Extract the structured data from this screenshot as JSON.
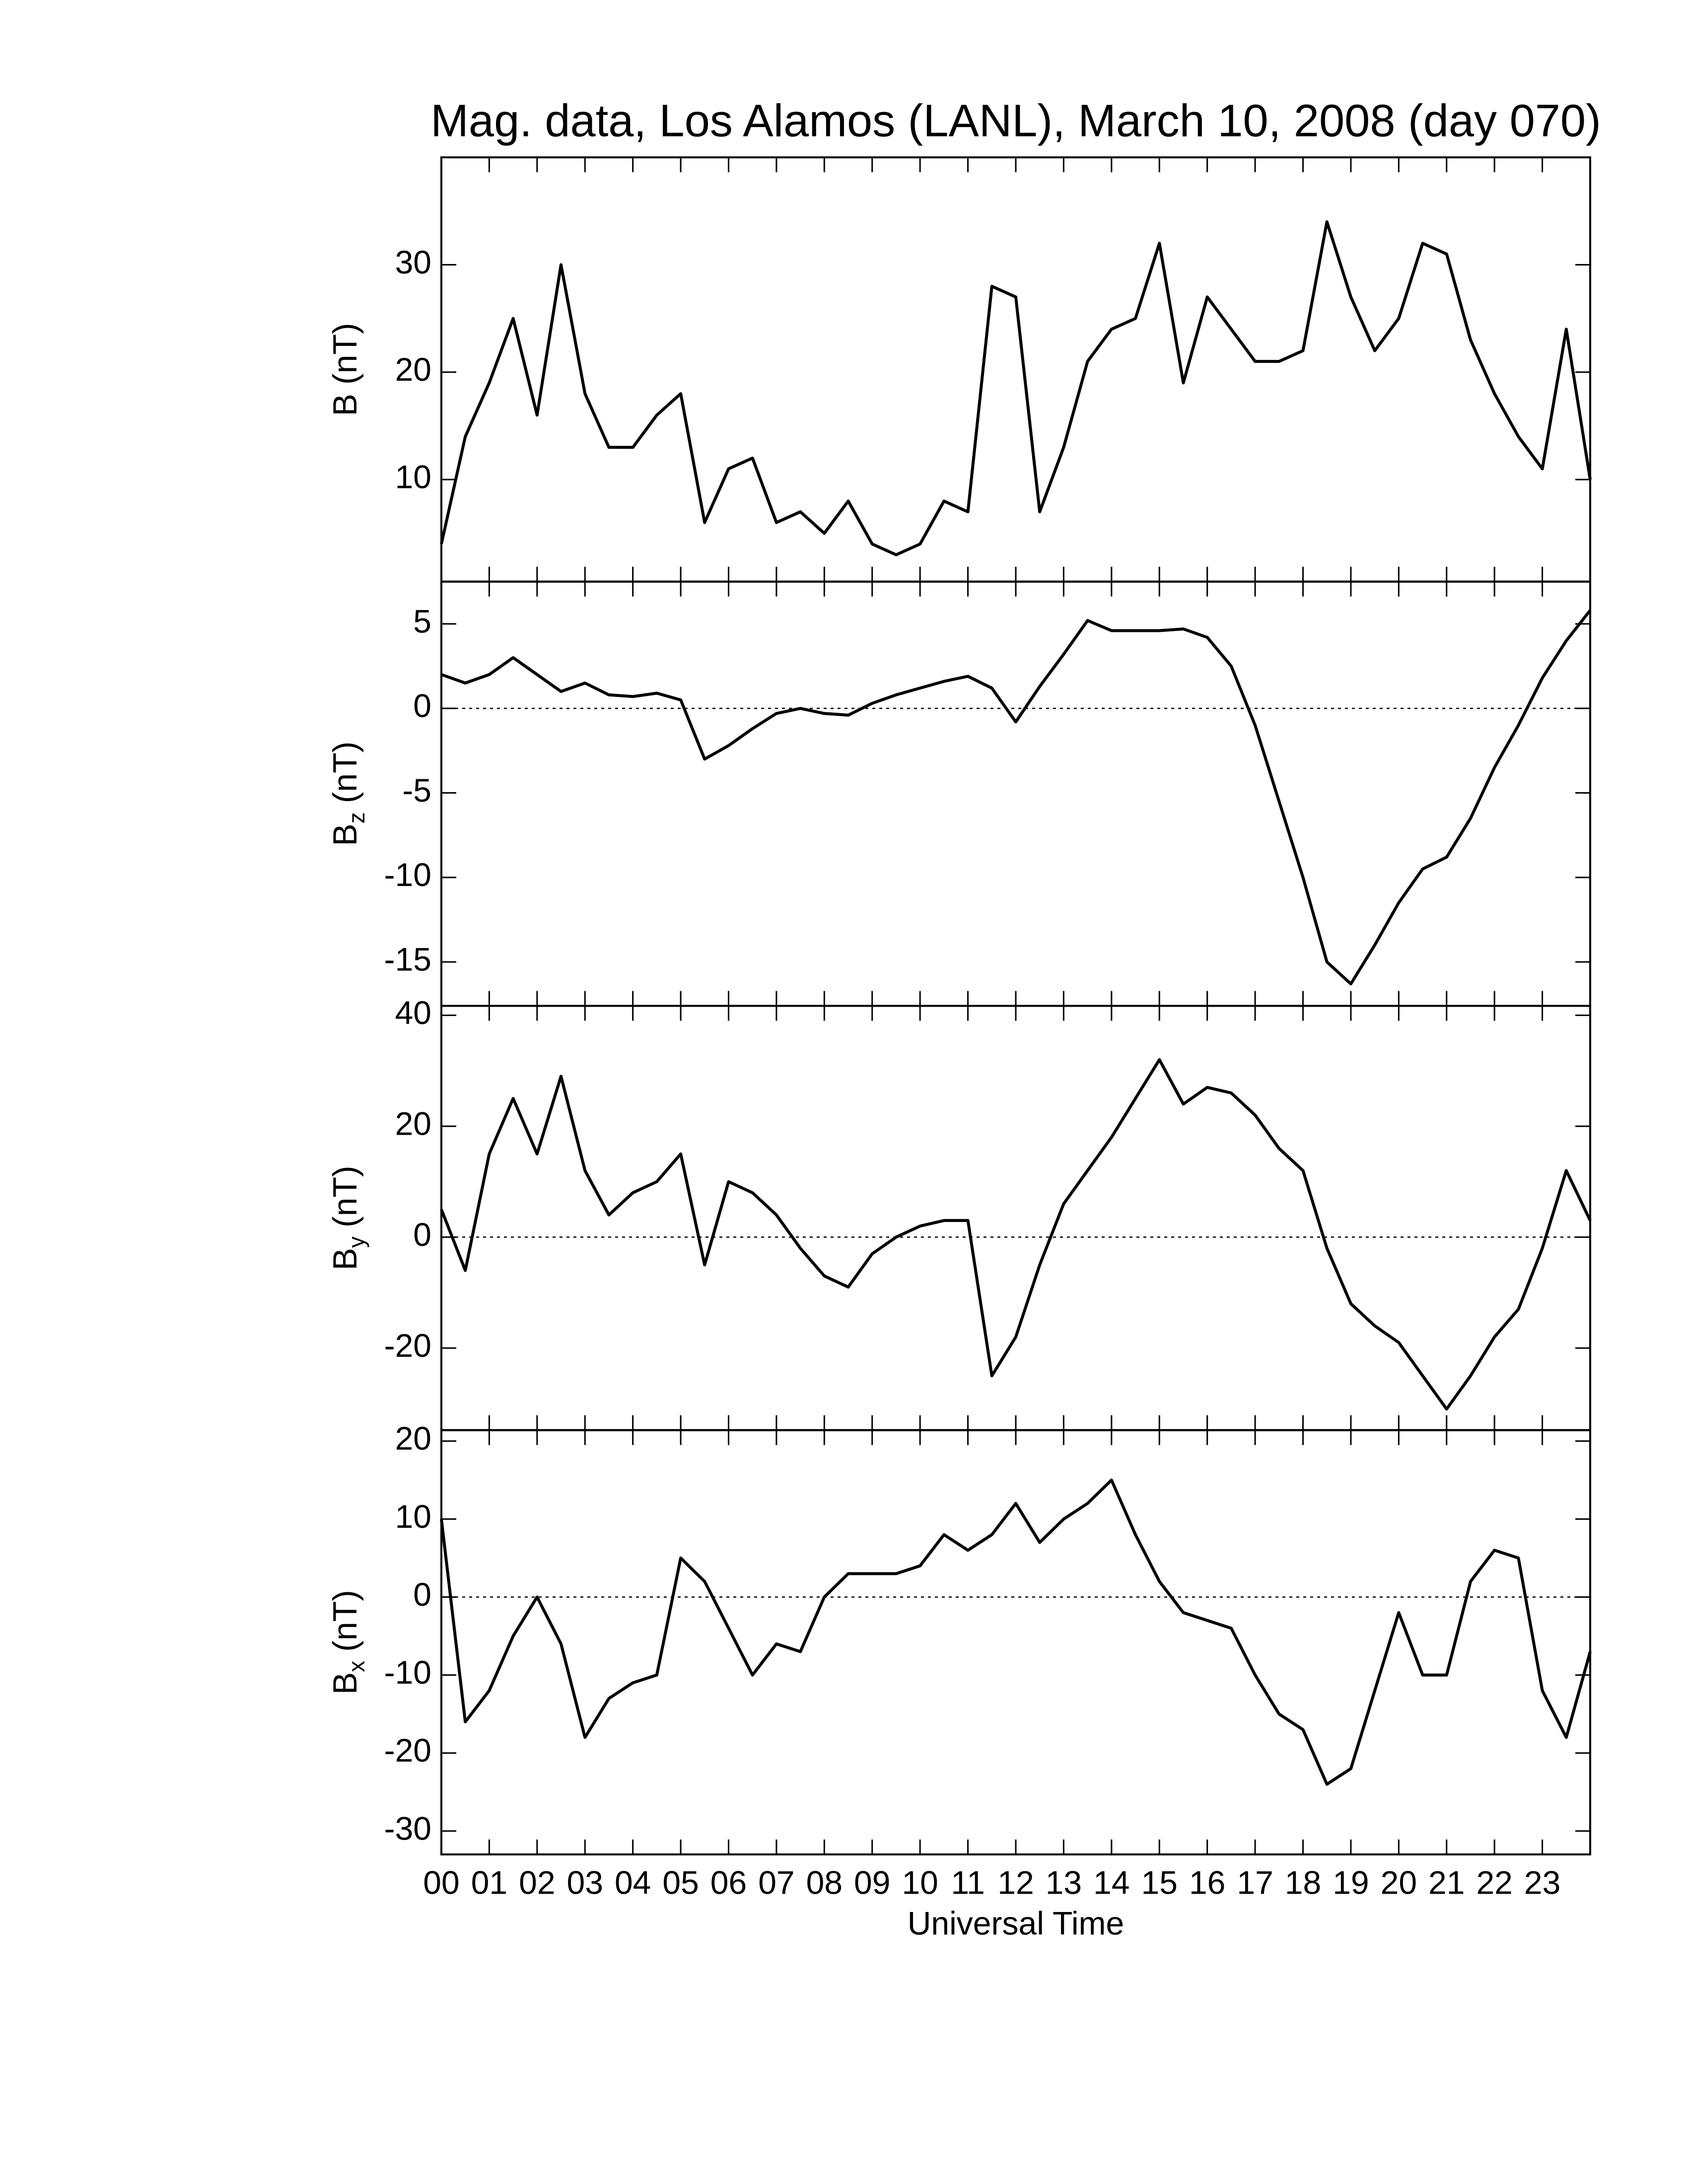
{
  "chart_data": {
    "type": "line",
    "title": "Mag. data, Los Alamos (LANL), March 10, 2008 (day 070)",
    "xlabel": "Universal Time",
    "xlim": [
      0,
      24
    ],
    "xticks": [
      {
        "value": 0,
        "label": "00"
      },
      {
        "value": 1,
        "label": "01"
      },
      {
        "value": 2,
        "label": "02"
      },
      {
        "value": 3,
        "label": "03"
      },
      {
        "value": 4,
        "label": "04"
      },
      {
        "value": 5,
        "label": "05"
      },
      {
        "value": 6,
        "label": "06"
      },
      {
        "value": 7,
        "label": "07"
      },
      {
        "value": 8,
        "label": "08"
      },
      {
        "value": 9,
        "label": "09"
      },
      {
        "value": 10,
        "label": "10"
      },
      {
        "value": 11,
        "label": "11"
      },
      {
        "value": 12,
        "label": "12"
      },
      {
        "value": 13,
        "label": "13"
      },
      {
        "value": 14,
        "label": "14"
      },
      {
        "value": 15,
        "label": "15"
      },
      {
        "value": 16,
        "label": "16"
      },
      {
        "value": 17,
        "label": "17"
      },
      {
        "value": 18,
        "label": "18"
      },
      {
        "value": 19,
        "label": "19"
      },
      {
        "value": 20,
        "label": "20"
      },
      {
        "value": 21,
        "label": "21"
      },
      {
        "value": 22,
        "label": "22"
      },
      {
        "value": 23,
        "label": "23"
      }
    ],
    "x": [
      0,
      0.5,
      1,
      1.5,
      2,
      2.5,
      3,
      3.5,
      4,
      4.5,
      5,
      5.5,
      6,
      6.5,
      7,
      7.5,
      8,
      8.5,
      9,
      9.5,
      10,
      10.5,
      11,
      11.5,
      12,
      12.5,
      13,
      13.5,
      14,
      14.5,
      15,
      15.5,
      16,
      16.5,
      17,
      17.5,
      18,
      18.5,
      19,
      19.5,
      20,
      20.5,
      21,
      21.5,
      22,
      22.5,
      23,
      23.5,
      24
    ],
    "panels": [
      {
        "ylabel": "B",
        "ylabel_unit": "(nT)",
        "ylim": [
          0.5,
          40
        ],
        "yticks": [
          10,
          20,
          30
        ],
        "zero_line": false,
        "series": [
          {
            "color": "#000000",
            "values": [
              4,
              14,
              19,
              25,
              16,
              30,
              18,
              13,
              13,
              16,
              18,
              6,
              11,
              12,
              6,
              7,
              5,
              8,
              4,
              3,
              4,
              8,
              7,
              28,
              27,
              7,
              13,
              21,
              24,
              25,
              32,
              19,
              27,
              24,
              21,
              21,
              22,
              34,
              27,
              22,
              25,
              32,
              31,
              23,
              18,
              14,
              11,
              24,
              10
            ]
          }
        ]
      },
      {
        "ylabel": "B",
        "ylabel_sub": "z",
        "ylabel_unit": "(nT)",
        "ylim": [
          -17.6,
          7.5
        ],
        "yticks": [
          -15,
          -10,
          -5,
          0,
          5
        ],
        "zero_line": true,
        "series": [
          {
            "color": "#000000",
            "values": [
              2,
              1.5,
              2,
              3,
              2,
              1,
              1.5,
              0.8,
              0.7,
              0.9,
              0.5,
              -3,
              -2.2,
              -1.2,
              -0.3,
              0,
              -0.3,
              -0.4,
              0.3,
              0.8,
              1.2,
              1.6,
              1.9,
              1.2,
              -0.8,
              1.3,
              3.2,
              5.2,
              4.6,
              4.6,
              4.6,
              4.7,
              4.2,
              2.5,
              -1,
              -5.5,
              -10,
              -15,
              -16.3,
              -14,
              -11.5,
              -9.5,
              -8.8,
              -6.5,
              -3.5,
              -1,
              1.8,
              4,
              5.8
            ]
          }
        ]
      },
      {
        "ylabel": "B",
        "ylabel_sub": "y",
        "ylabel_unit": "(nT)",
        "ylim": [
          -34.8,
          41.7
        ],
        "yticks": [
          -20,
          0,
          20,
          40
        ],
        "zero_line": true,
        "series": [
          {
            "color": "#000000",
            "values": [
              5,
              -6,
              15,
              25,
              15,
              29,
              12,
              4,
              8,
              10,
              15,
              -5,
              10,
              8,
              4,
              -2,
              -7,
              -9,
              -3,
              0,
              2,
              3,
              3,
              -25,
              -18,
              -5,
              6,
              12,
              18,
              25,
              32,
              24,
              27,
              26,
              22,
              16,
              12,
              -2,
              -12,
              -16,
              -19,
              -25,
              -31,
              -25,
              -18,
              -13,
              -2,
              12,
              3
            ]
          }
        ]
      },
      {
        "ylabel": "B",
        "ylabel_sub": "x",
        "ylabel_unit": "(nT)",
        "ylim": [
          -33,
          21.4
        ],
        "yticks": [
          -30,
          -20,
          -10,
          0,
          10,
          20
        ],
        "zero_line": true,
        "series": [
          {
            "color": "#000000",
            "values": [
              10,
              -16,
              -12,
              -5,
              0,
              -6,
              -18,
              -13,
              -11,
              -10,
              5,
              2,
              -4,
              -10,
              -6,
              -7,
              0,
              3,
              3,
              3,
              4,
              8,
              6,
              8,
              12,
              7,
              10,
              12,
              15,
              8,
              2,
              -2,
              -3,
              -4,
              -10,
              -15,
              -17,
              -24,
              -22,
              -12,
              -2,
              -10,
              -10,
              2,
              6,
              5,
              -12,
              -18,
              -7
            ]
          }
        ]
      }
    ]
  }
}
